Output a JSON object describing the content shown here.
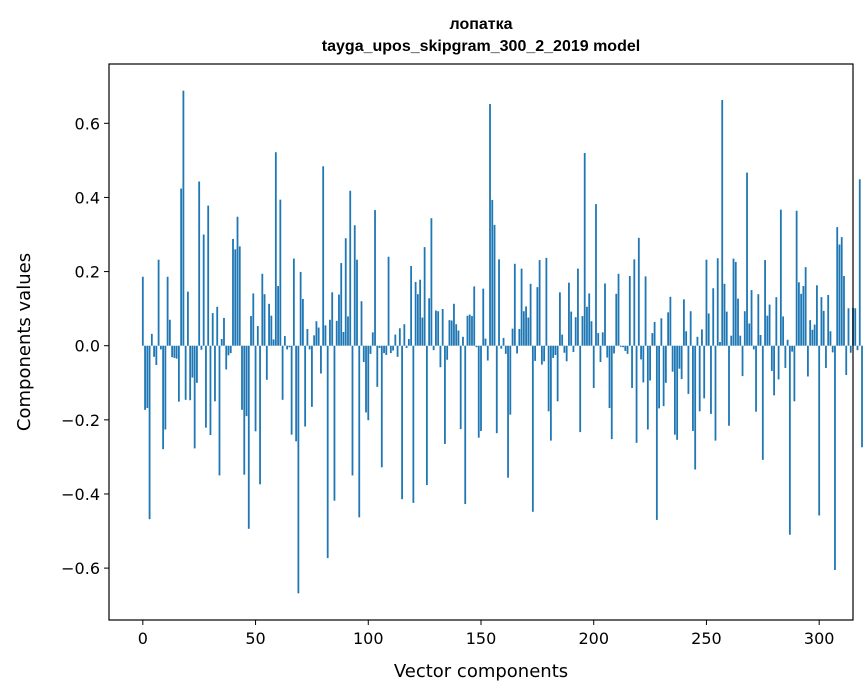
{
  "chart_data": {
    "type": "bar",
    "title": "лопатка",
    "subtitle": "tayga_upos_skipgram_300_2_2019 model",
    "xlabel": "Vector components",
    "ylabel": "Components values",
    "xlim": [
      -15,
      315
    ],
    "ylim": [
      -0.74,
      0.76
    ],
    "xticks": [
      0,
      50,
      100,
      150,
      200,
      250,
      300
    ],
    "yticks": [
      -0.6,
      -0.4,
      -0.2,
      0.0,
      0.2,
      0.4,
      0.6
    ],
    "ytick_labels": [
      "−0.6",
      "−0.4",
      "−0.2",
      "0.0",
      "0.2",
      "0.4",
      "0.6"
    ],
    "bar_color": "#1f77b4",
    "grid": false,
    "values": [
      0.186,
      -0.173,
      -0.168,
      -0.468,
      0.032,
      -0.03,
      -0.052,
      0.232,
      -0.01,
      -0.279,
      -0.226,
      0.186,
      0.07,
      -0.031,
      -0.033,
      -0.035,
      -0.151,
      0.424,
      0.688,
      -0.146,
      0.146,
      -0.147,
      -0.086,
      -0.277,
      -0.1,
      0.443,
      -0.011,
      0.3,
      -0.221,
      0.378,
      -0.241,
      0.088,
      -0.15,
      0.105,
      -0.35,
      0.018,
      0.075,
      -0.064,
      -0.026,
      -0.02,
      0.288,
      0.26,
      0.348,
      0.268,
      -0.173,
      -0.348,
      -0.19,
      -0.494,
      0.08,
      0.141,
      -0.231,
      0.053,
      -0.374,
      0.194,
      0.139,
      -0.092,
      0.113,
      0.081,
      0.017,
      0.522,
      0.161,
      0.394,
      -0.146,
      0.026,
      -0.01,
      -0.004,
      -0.24,
      0.235,
      -0.258,
      -0.668,
      0.199,
      0.126,
      -0.218,
      0.045,
      -0.01,
      -0.165,
      0.028,
      0.066,
      0.049,
      -0.075,
      0.484,
      0.055,
      -0.573,
      0.07,
      0.144,
      -0.418,
      0.067,
      0.138,
      0.223,
      0.037,
      0.29,
      0.079,
      0.418,
      -0.35,
      0.325,
      0.232,
      -0.463,
      0.12,
      -0.044,
      -0.18,
      -0.201,
      -0.022,
      0.036,
      0.366,
      -0.111,
      -0.006,
      -0.328,
      -0.02,
      -0.025,
      0.24,
      -0.02,
      -0.013,
      0.03,
      -0.03,
      0.047,
      -0.414,
      0.058,
      -0.006,
      0.018,
      0.215,
      -0.424,
      0.172,
      0.139,
      0.178,
      0.076,
      0.266,
      -0.376,
      0.128,
      0.344,
      -0.012,
      0.095,
      0.093,
      -0.058,
      0.099,
      -0.265,
      -0.038,
      0.069,
      0.068,
      0.113,
      0.058,
      0.041,
      -0.225,
      0.024,
      -0.427,
      0.081,
      0.084,
      0.08,
      0.16,
      -0.004,
      -0.248,
      -0.23,
      0.154,
      0.019,
      -0.04,
      0.652,
      0.393,
      0.326,
      -0.236,
      0.233,
      -0.008,
      0.021,
      -0.022,
      -0.356,
      -0.186,
      0.046,
      0.221,
      -0.021,
      0.045,
      0.208,
      0.093,
      0.106,
      0.076,
      0.167,
      -0.448,
      -0.041,
      0.158,
      0.231,
      -0.051,
      -0.042,
      0.237,
      -0.177,
      -0.256,
      -0.033,
      -0.025,
      -0.15,
      0.144,
      0.03,
      -0.019,
      -0.042,
      0.17,
      0.092,
      -0.017,
      0.077,
      0.208,
      -0.233,
      0.08,
      0.52,
      0.105,
      0.141,
      0.066,
      -0.114,
      0.382,
      0.034,
      -0.044,
      0.036,
      0.168,
      -0.032,
      -0.168,
      -0.252,
      -0.021,
      0.14,
      0.194,
      -0.003,
      -0.004,
      -0.014,
      -0.022,
      0.188,
      -0.114,
      0.233,
      -0.262,
      0.291,
      -0.037,
      -0.099,
      0.187,
      -0.226,
      -0.094,
      0.034,
      0.064,
      -0.47,
      -0.169,
      0.074,
      -0.163,
      -0.1,
      0.09,
      0.132,
      -0.07,
      -0.24,
      -0.254,
      -0.062,
      -0.09,
      0.125,
      0.039,
      -0.13,
      0.093,
      -0.23,
      -0.334,
      0.024,
      -0.177,
      0.044,
      -0.142,
      0.232,
      0.087,
      -0.184,
      0.155,
      -0.256,
      0.236,
      0.01,
      0.663,
      0.167,
      0.092,
      -0.216,
      0.027,
      0.235,
      0.226,
      0.127,
      0.027,
      -0.082,
      0.093,
      0.467,
      0.06,
      0.15,
      -0.01,
      -0.178,
      0.139,
      0.029,
      -0.308,
      0.231,
      0.081,
      0.111,
      -0.068,
      -0.134,
      0.131,
      -0.091,
      0.367,
      0.079,
      -0.06,
      0.016,
      -0.51,
      -0.016,
      -0.15,
      0.364,
      0.171,
      0.14,
      0.161,
      0.212,
      -0.083,
      0.069,
      0.043,
      0.057,
      0.163,
      -0.458,
      0.131,
      0.094,
      -0.06,
      0.137,
      0.039,
      -0.018,
      -0.605,
      0.32,
      0.273,
      0.293,
      0.188,
      -0.079,
      0.101,
      -0.019,
      0.102,
      0.101,
      -0.012,
      0.449,
      -0.274
    ]
  }
}
